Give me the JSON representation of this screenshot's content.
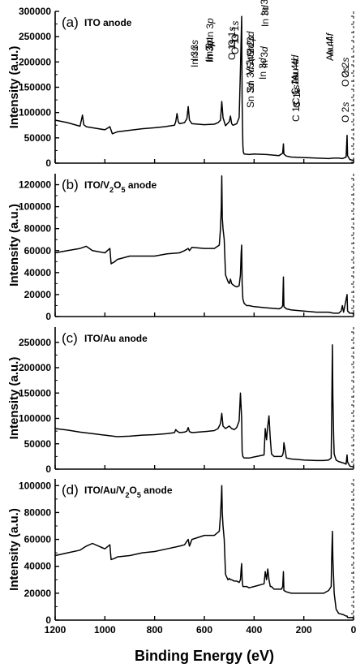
{
  "chart_data": {
    "type": "line",
    "xlabel": "Binding Energy (eV)",
    "xlim": [
      1200,
      0
    ],
    "x_ticks": [
      1200,
      1000,
      800,
      600,
      400,
      200,
      0
    ],
    "panels": [
      {
        "id": "(a)",
        "title": "ITO anode",
        "ylabel": "Intensity (a.u.)",
        "ylim": [
          0,
          300000
        ],
        "y_ticks": [
          0,
          50000,
          100000,
          150000,
          200000,
          250000,
          300000
        ],
        "series": [
          {
            "x": [
              1200,
              1150,
              1100,
              1090,
              1085,
              1075,
              1050,
              1000,
              980,
              970,
              950,
              900,
              850,
              800,
              760,
              720,
              715,
              710,
              705,
              700,
              680,
              670,
              665,
              660,
              650,
              600,
              560,
              545,
              535,
              530,
              525,
              515,
              500,
              495,
              490,
              485,
              470,
              460,
              455,
              450,
              448,
              445,
              443,
              440,
              420,
              400,
              350,
              300,
              290,
              285,
              282,
              280,
              270,
              250,
              200,
              150,
              100,
              80,
              60,
              45,
              30,
              26,
              24,
              15,
              5,
              0
            ],
            "y": [
              85000,
              80000,
              73000,
              95000,
              76000,
              72000,
              70000,
              66000,
              72000,
              58000,
              62000,
              65000,
              68000,
              70000,
              72000,
              75000,
              82000,
              98000,
              82000,
              78000,
              80000,
              88000,
              112000,
              85000,
              78000,
              76000,
              77000,
              80000,
              85000,
              122000,
              90000,
              74000,
              82000,
              93000,
              78000,
              75000,
              78000,
              90000,
              185000,
              290000,
              120000,
              35000,
              22000,
              18000,
              17000,
              18000,
              17000,
              15000,
              18000,
              20000,
              38000,
              18000,
              14000,
              12000,
              11000,
              10000,
              9000,
              10000,
              10000,
              9000,
              12000,
              55000,
              15000,
              7000,
              6000,
              5000
            ]
          }
        ],
        "annotations": [
          "In 3s",
          "In 3p",
          "O 1s",
          "Sn 3d",
          "In 3d",
          "C 1s",
          "O 2s"
        ]
      },
      {
        "id": "(b)",
        "title": "ITO/V2O5 anode",
        "ylabel": "Intensity (a.u.)",
        "ylim": [
          0,
          130000
        ],
        "y_ticks": [
          0,
          20000,
          40000,
          60000,
          80000,
          100000,
          120000
        ],
        "series": [
          {
            "x": [
              1200,
              1150,
              1100,
              1075,
              1050,
              1000,
              980,
              975,
              960,
              950,
              900,
              850,
              800,
              750,
              700,
              680,
              665,
              660,
              650,
              600,
              560,
              540,
              535,
              532,
              530,
              528,
              525,
              520,
              515,
              510,
              505,
              500,
              495,
              490,
              480,
              470,
              460,
              455,
              452,
              450,
              448,
              445,
              440,
              430,
              420,
              400,
              350,
              300,
              290,
              285,
              282,
              280,
              270,
              250,
              200,
              150,
              100,
              80,
              60,
              50,
              45,
              40,
              26,
              24,
              15,
              5,
              0
            ],
            "y": [
              58000,
              60000,
              62000,
              64000,
              60000,
              58000,
              62000,
              48000,
              50000,
              52000,
              55000,
              55000,
              55000,
              57000,
              58000,
              60000,
              62000,
              60000,
              63000,
              62000,
              62000,
              65000,
              80000,
              100000,
              128000,
              90000,
              80000,
              70000,
              38000,
              35000,
              32000,
              30000,
              34000,
              30000,
              28000,
              27000,
              28000,
              38000,
              58000,
              65000,
              30000,
              16000,
              12000,
              10000,
              10000,
              9000,
              8000,
              7000,
              8000,
              10000,
              36000,
              9000,
              7000,
              6000,
              5000,
              4000,
              4000,
              3000,
              3000,
              5000,
              10000,
              4000,
              20000,
              5000,
              3000,
              3000,
              2000
            ]
          }
        ],
        "annotations": [
          "In 3p",
          "O 1s",
          "V 2p",
          "Sn 3d",
          "In 3d",
          "C 1s",
          "O 2s"
        ]
      },
      {
        "id": "(c)",
        "title": "ITO/Au anode",
        "ylabel": "Intensity (a.u.)",
        "ylim": [
          0,
          280000
        ],
        "y_ticks": [
          0,
          50000,
          100000,
          150000,
          200000,
          250000
        ],
        "series": [
          {
            "x": [
              1200,
              1150,
              1100,
              1050,
              1000,
              950,
              900,
              850,
              800,
              750,
              720,
              715,
              710,
              700,
              680,
              670,
              665,
              660,
              650,
              600,
              560,
              545,
              535,
              530,
              525,
              515,
              500,
              490,
              480,
              470,
              460,
              455,
              450,
              448,
              445,
              440,
              420,
              400,
              360,
              355,
              350,
              345,
              340,
              335,
              330,
              320,
              300,
              290,
              285,
              282,
              280,
              270,
              250,
              200,
              150,
              120,
              100,
              90,
              88,
              85,
              83,
              80,
              78,
              70,
              60,
              40,
              30,
              26,
              24,
              15,
              5,
              0
            ],
            "y": [
              80000,
              77000,
              73000,
              70000,
              67000,
              64000,
              65000,
              67000,
              68000,
              70000,
              72000,
              78000,
              75000,
              72000,
              73000,
              75000,
              82000,
              74000,
              72000,
              74000,
              76000,
              80000,
              90000,
              110000,
              85000,
              80000,
              85000,
              80000,
              78000,
              82000,
              95000,
              150000,
              100000,
              35000,
              25000,
              22000,
              22000,
              24000,
              28000,
              80000,
              58000,
              85000,
              105000,
              60000,
              30000,
              25000,
              25000,
              25000,
              28000,
              35000,
              52000,
              22000,
              20000,
              18000,
              17000,
              17000,
              18000,
              22000,
              100000,
              245000,
              140000,
              60000,
              30000,
              18000,
              15000,
              12000,
              10000,
              28000,
              14000,
              6000,
              5000,
              4000
            ]
          }
        ],
        "annotations": [
          "In 3s",
          "In 3p",
          "O 1s",
          "Sn 3d",
          "In 3d",
          "Au 4d",
          "C 1s",
          "Au 4f",
          "O 2s"
        ]
      },
      {
        "id": "(d)",
        "title": "ITO/Au/V2O5 anode",
        "ylabel": "Intensity (a.u.)",
        "ylim": [
          0,
          105000
        ],
        "y_ticks": [
          0,
          20000,
          40000,
          60000,
          80000,
          100000
        ],
        "series": [
          {
            "x": [
              1200,
              1150,
              1100,
              1075,
              1050,
              1000,
              980,
              975,
              960,
              950,
              900,
              850,
              800,
              750,
              700,
              680,
              665,
              660,
              650,
              600,
              560,
              540,
              535,
              532,
              530,
              528,
              525,
              520,
              515,
              510,
              505,
              500,
              495,
              490,
              480,
              470,
              460,
              455,
              452,
              450,
              448,
              445,
              440,
              430,
              420,
              400,
              360,
              355,
              350,
              345,
              340,
              335,
              330,
              320,
              300,
              290,
              285,
              282,
              280,
              270,
              250,
              200,
              150,
              120,
              100,
              90,
              88,
              85,
              83,
              80,
              78,
              70,
              60,
              40,
              30,
              26,
              24,
              15,
              5,
              0
            ],
            "y": [
              48000,
              50000,
              52000,
              55000,
              57000,
              53000,
              56000,
              45000,
              46000,
              47000,
              48000,
              50000,
              51000,
              53000,
              55000,
              56000,
              60000,
              55000,
              60000,
              63000,
              63000,
              66000,
              78000,
              90000,
              100000,
              80000,
              70000,
              60000,
              34000,
              32000,
              30000,
              31000,
              30000,
              30000,
              29000,
              29000,
              28000,
              30000,
              38000,
              42000,
              30000,
              25000,
              25000,
              25000,
              24000,
              25000,
              27000,
              36000,
              30000,
              38000,
              30000,
              25000,
              25000,
              23000,
              23000,
              23000,
              25000,
              36000,
              22000,
              21000,
              20000,
              20000,
              20000,
              20000,
              22000,
              25000,
              45000,
              66000,
              45000,
              30000,
              20000,
              8000,
              5000,
              4000,
              3000,
              3000,
              2000,
              2000,
              2000,
              1000
            ]
          }
        ],
        "annotations": [
          "In 3p",
          "O 1s",
          "V 2p",
          "Sn 3d",
          "In 3d",
          "Au 4d",
          "C 1s",
          "Au 4f"
        ]
      }
    ]
  }
}
